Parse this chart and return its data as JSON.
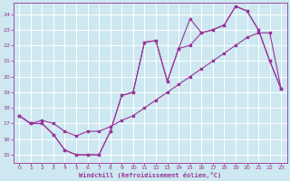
{
  "xlabel": "Windchill (Refroidissement éolien,°C)",
  "background_color": "#cde8f0",
  "grid_color": "#ffffff",
  "line_color": "#993399",
  "xlim": [
    -0.5,
    23.5
  ],
  "ylim": [
    14.5,
    24.7
  ],
  "yticks": [
    15,
    16,
    17,
    18,
    19,
    20,
    21,
    22,
    23,
    24
  ],
  "xticks": [
    0,
    1,
    2,
    3,
    4,
    5,
    6,
    7,
    8,
    9,
    10,
    11,
    12,
    13,
    14,
    15,
    16,
    17,
    18,
    19,
    20,
    21,
    22,
    23
  ],
  "line1_x": [
    0,
    1,
    2,
    3,
    4,
    5,
    6,
    7,
    8,
    9,
    10,
    11,
    12,
    13,
    14,
    15,
    16,
    17,
    18,
    19,
    20,
    21,
    22,
    23
  ],
  "line1_y": [
    17.5,
    17.0,
    17.0,
    16.3,
    15.3,
    15.0,
    15.0,
    15.0,
    16.5,
    18.8,
    19.0,
    22.2,
    22.3,
    19.7,
    21.8,
    22.0,
    22.8,
    23.0,
    23.3,
    24.5,
    24.2,
    23.0,
    21.0,
    19.2
  ],
  "line2_x": [
    0,
    1,
    2,
    3,
    4,
    5,
    6,
    7,
    8,
    9,
    10,
    11,
    12,
    13,
    14,
    15,
    16,
    17,
    18,
    19,
    20,
    21,
    22,
    23
  ],
  "line2_y": [
    17.5,
    17.0,
    17.0,
    16.3,
    15.3,
    15.0,
    15.0,
    15.0,
    16.5,
    18.8,
    19.0,
    22.2,
    22.3,
    19.7,
    21.8,
    23.7,
    22.8,
    23.0,
    23.3,
    24.5,
    24.2,
    23.0,
    21.0,
    19.2
  ],
  "line3_x": [
    0,
    1,
    2,
    3,
    4,
    5,
    6,
    7,
    8,
    9,
    10,
    11,
    12,
    13,
    14,
    15,
    16,
    17,
    18,
    19,
    20,
    21,
    22,
    23
  ],
  "line3_y": [
    17.5,
    17.0,
    17.2,
    17.0,
    16.5,
    16.2,
    16.5,
    16.5,
    16.8,
    17.2,
    17.5,
    18.0,
    18.5,
    19.0,
    19.5,
    20.0,
    20.5,
    21.0,
    21.5,
    22.0,
    22.5,
    22.8,
    22.8,
    19.2
  ]
}
